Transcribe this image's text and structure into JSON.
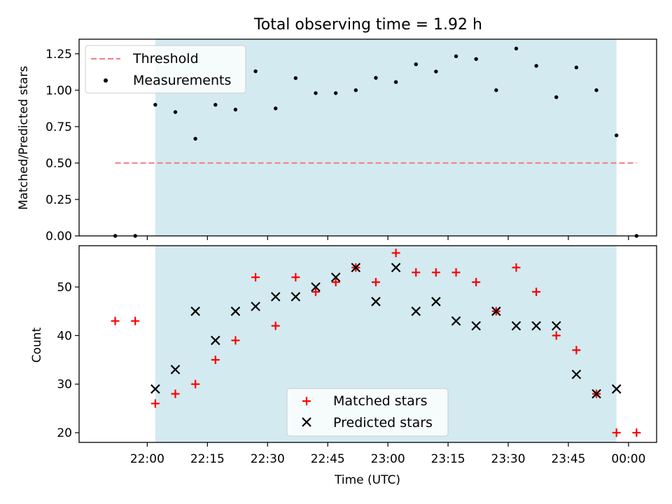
{
  "figure": {
    "title": "Total observing time = 1.92 h",
    "xlabel": "Time (UTC)",
    "xtick_labels": [
      "22:00",
      "22:15",
      "22:30",
      "22:45",
      "23:00",
      "23:15",
      "23:30",
      "23:45",
      "00:00"
    ]
  },
  "colors": {
    "window": "#d3eaf0",
    "threshold": "#f08080",
    "measurement": "#000000",
    "matched": "#ff0000",
    "predicted": "#000000"
  },
  "chart_data": [
    {
      "type": "scatter",
      "panel": "top",
      "ylabel": "Matched/Predicted stars",
      "ylim": [
        0,
        1.35
      ],
      "yticks": [
        0,
        0.25,
        0.5,
        0.75,
        1.0,
        1.25
      ],
      "ytick_labels": [
        "0.00",
        "0.25",
        "0.50",
        "0.75",
        "1.00",
        "1.25"
      ],
      "xrange": [
        "21:43",
        "00:07"
      ],
      "observing_window": [
        "22:02",
        "23:57"
      ],
      "threshold": {
        "name": "Threshold",
        "y": 0.5,
        "x_start": "21:52",
        "x_end": "00:02"
      },
      "legend": "upper-left",
      "series": [
        {
          "name": "Measurements",
          "x": [
            "21:52",
            "21:57",
            "22:02",
            "22:07",
            "22:12",
            "22:17",
            "22:22",
            "22:27",
            "22:32",
            "22:37",
            "22:42",
            "22:47",
            "22:52",
            "22:57",
            "23:02",
            "23:07",
            "23:12",
            "23:17",
            "23:22",
            "23:27",
            "23:32",
            "23:37",
            "23:42",
            "23:47",
            "23:52",
            "23:57",
            "00:02"
          ],
          "values": [
            0,
            0,
            0.9,
            0.85,
            0.667,
            0.9,
            0.867,
            1.13,
            0.875,
            1.083,
            0.98,
            0.98,
            1.0,
            1.085,
            1.056,
            1.178,
            1.128,
            1.233,
            1.214,
            1.0,
            1.286,
            1.167,
            0.952,
            1.156,
            1.0,
            0.69,
            0
          ]
        }
      ]
    },
    {
      "type": "scatter",
      "panel": "bottom",
      "ylabel": "Count",
      "ylim": [
        18,
        58.5
      ],
      "yticks": [
        20,
        30,
        40,
        50
      ],
      "ytick_labels": [
        "20",
        "30",
        "40",
        "50"
      ],
      "xrange": [
        "21:43",
        "00:07"
      ],
      "observing_window": [
        "22:02",
        "23:57"
      ],
      "legend": "lower-center",
      "series": [
        {
          "name": "Matched stars",
          "marker": "plus",
          "x": [
            "21:52",
            "21:57",
            "22:02",
            "22:07",
            "22:12",
            "22:17",
            "22:22",
            "22:27",
            "22:32",
            "22:37",
            "22:42",
            "22:47",
            "22:52",
            "22:57",
            "23:02",
            "23:07",
            "23:12",
            "23:17",
            "23:22",
            "23:27",
            "23:32",
            "23:37",
            "23:42",
            "23:47",
            "23:52",
            "23:57",
            "00:02"
          ],
          "values": [
            43,
            43,
            26,
            28,
            30,
            35,
            39,
            52,
            42,
            52,
            49,
            51,
            54,
            51,
            57,
            53,
            53,
            53,
            51,
            45,
            54,
            49,
            40,
            37,
            28,
            20,
            20
          ]
        },
        {
          "name": "Predicted stars",
          "marker": "x",
          "x": [
            "22:02",
            "22:07",
            "22:12",
            "22:17",
            "22:22",
            "22:27",
            "22:32",
            "22:37",
            "22:42",
            "22:47",
            "22:52",
            "22:57",
            "23:02",
            "23:07",
            "23:12",
            "23:17",
            "23:22",
            "23:27",
            "23:32",
            "23:37",
            "23:42",
            "23:47",
            "23:52",
            "23:57"
          ],
          "values": [
            29,
            33,
            45,
            39,
            45,
            46,
            48,
            48,
            50,
            52,
            54,
            47,
            54,
            45,
            47,
            43,
            42,
            45,
            42,
            42,
            42,
            32,
            28,
            29
          ]
        }
      ]
    }
  ]
}
